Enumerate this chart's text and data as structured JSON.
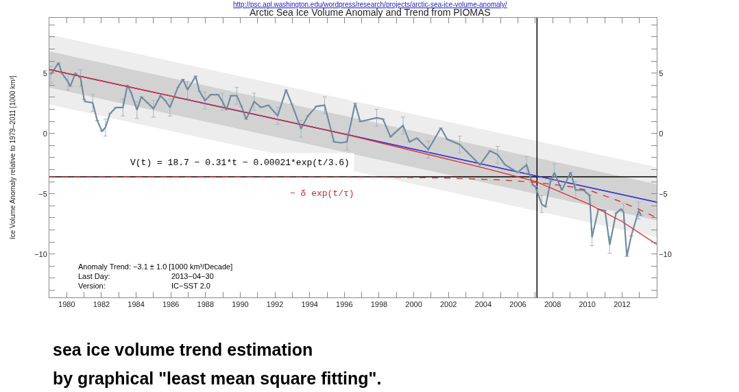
{
  "chart_data": {
    "type": "line",
    "title": "Arctic Sea Ice Volume Anomaly and Trend from PIOMAS",
    "ylabel": "Ice Volume Anomaly relative to 1979–2011 [1000 km³]",
    "annotations": [
      "http://psc.apl.washington.edu/wordpress/research/projects/arctic-sea-ice-volume-anomaly/",
      "V(t) = 18.7 − 0.31*t − 0.00021*exp(t/3.6)",
      "− δ exp(t/τ)",
      "Anomaly Trend: −3.1 ± 1.0 [1000 km³/Decade]",
      "Last Day:",
      "2013−04−30",
      "Version:",
      "IC−SST 2.0",
      "sea ice volume trend estimation",
      "by graphical \"least mean square fitting\"."
    ],
    "series": [
      {
        "color": "#3a3ad6",
        "x": [
          1979,
          2014
        ],
        "values": [
          5.3,
          -5.7
        ],
        "lower": [
          2.4,
          -8.6
        ],
        "upper": [
          8.2,
          -2.8
        ]
      },
      {
        "color": "#3a3ad6",
        "x": [
          1979,
          2014
        ],
        "values": [
          5.3,
          -5.7
        ],
        "lower": [
          3.8,
          -7.2
        ],
        "upper": [
          6.8,
          -4.2
        ]
      },
      {
        "color": "#6e8ca0",
        "x": [
          1979.08,
          1979.53,
          1979.73,
          1980.07,
          1980.2,
          1980.5,
          1980.8,
          1981.0,
          1981.08,
          1981.5,
          1981.76,
          1982.03,
          1982.23,
          1982.5,
          1982.84,
          1983.24,
          1983.5,
          1983.7,
          1984.05,
          1984.3,
          1984.66,
          1985.0,
          1985.4,
          1985.68,
          1985.95,
          1986.4,
          1986.7,
          1986.96,
          1987.43,
          1987.64,
          1987.97,
          1988.3,
          1988.72,
          1988.98,
          1989.2,
          1989.46,
          1989.8,
          1990.07,
          1990.34,
          1990.8,
          1991.2,
          1991.62,
          1992.16,
          1992.64,
          1992.97,
          1993.5,
          1993.9,
          1994.4,
          1994.86,
          1995.4,
          1995.8,
          1996.15,
          1996.62,
          1996.91,
          1997.86,
          1998.22,
          1998.66,
          1999.38,
          1999.75,
          2000.18,
          2000.84,
          2001.56,
          2001.93,
          2002.65,
          2003.81,
          2004.39,
          2004.83,
          2005.26,
          2005.99,
          2006.5,
          2006.86,
          2007.0,
          2007.37,
          2007.59,
          2007.88,
          2008.1,
          2008.53,
          2009.04,
          2009.33,
          2009.77,
          2010.13,
          2010.27,
          2010.64,
          2011.02,
          2011.29,
          2011.66,
          2011.94,
          2012.09,
          2012.28,
          2012.53,
          2012.96,
          2013.1
        ],
        "values": [
          4.88,
          5.86,
          4.98,
          4.3,
          3.9,
          4.98,
          4.59,
          2.83,
          2.64,
          2.54,
          1.07,
          0.2,
          0.49,
          1.66,
          2.15,
          2.15,
          4.0,
          3.42,
          1.95,
          3.03,
          2.54,
          2.05,
          3.13,
          2.73,
          2.15,
          3.81,
          4.49,
          3.61,
          4.75,
          3.52,
          2.73,
          3.22,
          3.22,
          2.64,
          1.95,
          3.13,
          3.13,
          2.25,
          1.17,
          2.64,
          2.15,
          2.34,
          1.46,
          3.61,
          2.44,
          0.39,
          1.46,
          2.25,
          2.34,
          -0.68,
          -0.78,
          -0.68,
          2.5,
          0.98,
          1.3,
          1.19,
          -0.28,
          0.66,
          -0.7,
          -0.39,
          -1.34,
          0.45,
          -0.49,
          -0.92,
          -2.6,
          -1.44,
          -1.76,
          -2.6,
          -3.23,
          -2.6,
          -4.28,
          -4.39,
          -5.86,
          -6.07,
          -3.97,
          -3.23,
          -4.7,
          -3.23,
          -4.7,
          -4.7,
          -5.13,
          -8.6,
          -6.28,
          -6.39,
          -9.23,
          -6.6,
          -6.28,
          -6.5,
          -10.18,
          -8.49,
          -6.39,
          -6.8
        ],
        "errors": [
          0.7,
          null,
          null,
          0.7,
          null,
          null,
          0.7,
          null,
          null,
          0.7,
          null,
          null,
          0.7,
          null,
          null,
          0.7,
          null,
          null,
          0.7,
          null,
          null,
          0.7,
          null,
          null,
          0.7,
          null,
          null,
          0.7,
          null,
          null,
          0.7,
          null,
          null,
          0.7,
          null,
          null,
          0.7,
          null,
          null,
          0.7,
          null,
          null,
          0.7,
          null,
          null,
          0.7,
          null,
          null,
          0.7,
          null,
          null,
          0.7,
          null,
          null,
          0.7,
          null,
          null,
          0.7,
          null,
          null,
          0.7,
          null,
          null,
          0.7,
          null,
          null,
          0.7,
          null,
          null,
          0.7,
          null,
          null,
          0.7,
          null,
          null,
          0.7,
          null,
          null,
          0.7,
          null,
          null,
          0.7,
          null,
          null,
          0.7,
          null,
          null,
          0.7,
          null,
          null,
          0.7,
          null
        ]
      },
      {
        "color": "#e03030",
        "x": [
          1979,
          1990,
          1996,
          2000,
          2004,
          2007,
          2010.1,
          2012,
          2014
        ],
        "values": [
          5.3,
          1.85,
          -0.05,
          -1.45,
          -2.85,
          -3.97,
          -5.86,
          -7.3,
          -9.2
        ]
      },
      {
        "color": "#e03030",
        "line_style": "dashed",
        "x": [
          1979,
          1998,
          2002,
          2005,
          2007,
          2009,
          2010.3,
          2011.9,
          2013,
          2014
        ],
        "values": [
          -3.6,
          -3.62,
          -3.7,
          -3.85,
          -4.05,
          -4.4,
          -4.8,
          -5.64,
          -6.3,
          -7.0
        ]
      }
    ],
    "ref_lines": [
      {
        "axis": "x",
        "value": 2007.1,
        "color": "#000000"
      },
      {
        "axis": "y",
        "value": -3.6,
        "color": "#000000"
      }
    ],
    "xlim": [
      1979,
      2014
    ],
    "xticks": [
      1980,
      {
        "value": 1981,
        "label": null
      },
      1982,
      {
        "value": 1983,
        "label": null
      },
      1984,
      {
        "value": 1985,
        "label": null
      },
      1986,
      {
        "value": 1987,
        "label": null
      },
      1988,
      {
        "value": 1989,
        "label": null
      },
      1990,
      {
        "value": 1991,
        "label": null
      },
      1992,
      {
        "value": 1993,
        "label": null
      },
      1994,
      {
        "value": 1995,
        "label": null
      },
      1996,
      {
        "value": 1997,
        "label": null
      },
      1998,
      {
        "value": 1999,
        "label": null
      },
      2000,
      {
        "value": 2001,
        "label": null
      },
      2002,
      {
        "value": 2003,
        "label": null
      },
      2004,
      {
        "value": 2005,
        "label": null
      },
      2006,
      {
        "value": 2007,
        "label": null
      },
      2008,
      {
        "value": 2009,
        "label": null
      },
      2010,
      {
        "value": 2011,
        "label": null
      },
      2012,
      {
        "value": 2013,
        "label": null
      }
    ],
    "ylim": [
      -13.6,
      9.6
    ],
    "yticks": [
      {
        "value": -13,
        "label": null
      },
      {
        "value": -12,
        "label": null
      },
      {
        "value": -11,
        "label": null
      },
      -10,
      {
        "value": -9,
        "label": null
      },
      {
        "value": -8,
        "label": null
      },
      {
        "value": -7,
        "label": null
      },
      {
        "value": -6,
        "label": null
      },
      -5,
      {
        "value": -4,
        "label": null
      },
      {
        "value": -3,
        "label": null
      },
      {
        "value": -2,
        "label": null
      },
      {
        "value": -1,
        "label": null
      },
      0,
      {
        "value": 1,
        "label": null
      },
      {
        "value": 2,
        "label": null
      },
      {
        "value": 3,
        "label": null
      },
      {
        "value": 4,
        "label": null
      },
      5,
      {
        "value": 6,
        "label": null
      },
      {
        "value": 7,
        "label": null
      },
      {
        "value": 8,
        "label": null
      },
      {
        "value": 9,
        "label": null
      }
    ],
    "y2lim": [
      -13.6,
      9.6
    ],
    "y2ticks": [
      {
        "value": -13,
        "label": null
      },
      {
        "value": -12,
        "label": null
      },
      {
        "value": -11,
        "label": null
      },
      -10,
      {
        "value": -9,
        "label": null
      },
      {
        "value": -8,
        "label": null
      },
      {
        "value": -7,
        "label": null
      },
      {
        "value": -6,
        "label": null
      },
      -5,
      {
        "value": -4,
        "label": null
      },
      {
        "value": -3,
        "label": null
      },
      {
        "value": -2,
        "label": null
      },
      {
        "value": -1,
        "label": null
      },
      0,
      {
        "value": 1,
        "label": null
      },
      {
        "value": 2,
        "label": null
      },
      {
        "value": 3,
        "label": null
      },
      {
        "value": 4,
        "label": null
      },
      5,
      {
        "value": 6,
        "label": null
      },
      {
        "value": 7,
        "label": null
      },
      {
        "value": 8,
        "label": null
      },
      {
        "value": 9,
        "label": null
      }
    ],
    "y2label": null
  }
}
